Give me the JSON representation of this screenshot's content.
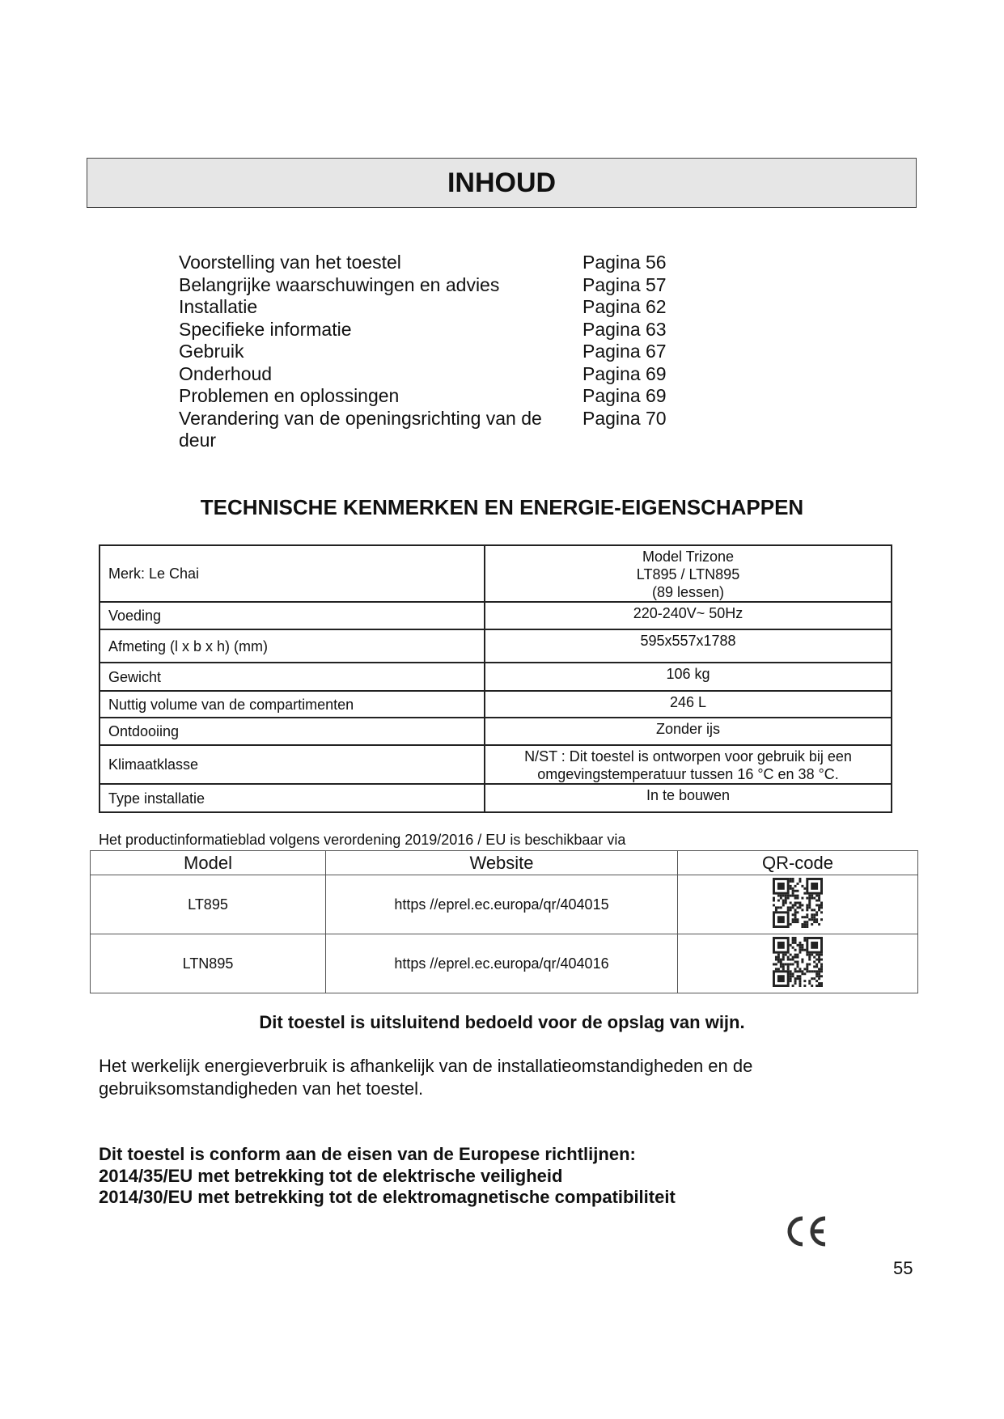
{
  "contents": {
    "title": "INHOUD",
    "items": [
      {
        "label": "Voorstelling van het toestel",
        "page": "Pagina 56"
      },
      {
        "label": "Belangrijke waarschuwingen en advies",
        "page": "Pagina 57"
      },
      {
        "label": "Installatie",
        "page": "Pagina 62"
      },
      {
        "label": "Specifieke informatie",
        "page": "Pagina 63"
      },
      {
        "label": "Gebruik",
        "page": "Pagina 67"
      },
      {
        "label": "Onderhoud",
        "page": "Pagina 69"
      },
      {
        "label": "Problemen en oplossingen",
        "page": "Pagina 69"
      },
      {
        "label": "Verandering van de openingsrichting van de deur",
        "page": "Pagina 70"
      }
    ]
  },
  "technical": {
    "heading": "TECHNISCHE KENMERKEN EN ENERGIE-EIGENSCHAPPEN",
    "rows": [
      {
        "label": "Merk: Le Chai",
        "value": "Model Trizone\nLT895 / LTN895\n(89 lessen)"
      },
      {
        "label": "Voeding",
        "value": "220-240V~ 50Hz"
      },
      {
        "label": "Afmeting (l x b x h) (mm)",
        "value": "595x557x1788"
      },
      {
        "label": "Gewicht",
        "value": "106 kg"
      },
      {
        "label": "Nuttig volume van de compartimenten",
        "value": "246 L"
      },
      {
        "label": "Ontdooiing",
        "value": "Zonder ijs"
      },
      {
        "label": "Klimaatklasse",
        "value": "N/ST : Dit toestel is ontworpen voor gebruik bij een omgevingstemperatuur tussen 16 °C en 38 °C."
      },
      {
        "label": "Type installatie",
        "value": "In te bouwen"
      }
    ]
  },
  "product_sheet": {
    "note": "Het productinformatieblad volgens verordening 2019/2016 / EU is beschikbaar via",
    "headers": [
      "Model",
      "Website",
      "QR-code"
    ],
    "rows": [
      {
        "model": "LT895",
        "website": "https //eprel.ec.europa/qr/404015",
        "qr": "qr-code-icon"
      },
      {
        "model": "LTN895",
        "website": "https //eprel.ec.europa/qr/404016",
        "qr": "qr-code-icon"
      }
    ]
  },
  "wine_notice": "Dit toestel is uitsluitend bedoeld voor de opslag van wijn.",
  "energy_notice": "Het werkelijk energieverbruik is afhankelijk van de installatieomstandigheden en de gebruiksomstandigheden van het toestel.",
  "conformity": [
    "Dit toestel is conform aan de eisen van de Europese richtlijnen:",
    "2014/35/EU met betrekking tot de elektrische veiligheid",
    "2014/30/EU met betrekking tot de elektromagnetische compatibiliteit"
  ],
  "ce_mark": "CE",
  "page_number": "55"
}
